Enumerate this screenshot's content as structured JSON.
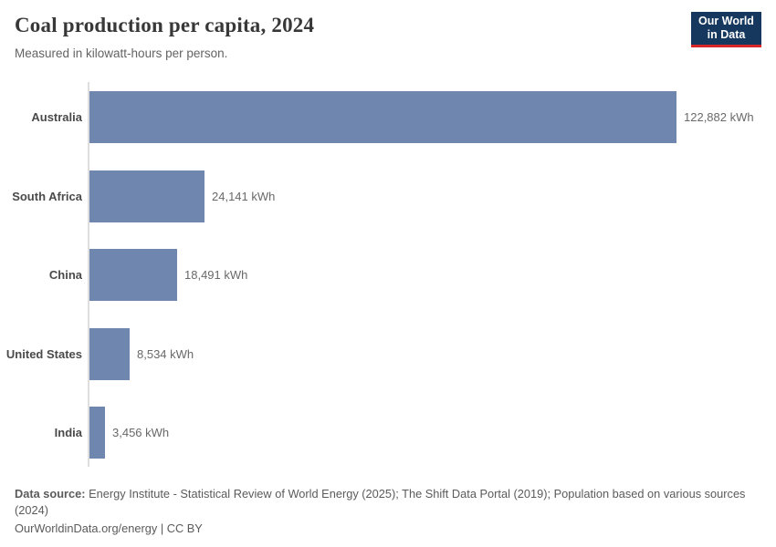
{
  "header": {
    "title": "Coal production per capita, 2024",
    "subtitle": "Measured in kilowatt-hours per person."
  },
  "logo": {
    "line1": "Our World",
    "line2": "in Data",
    "bg_color": "#17385e",
    "accent_color": "#d92629"
  },
  "chart_data": {
    "type": "bar",
    "orientation": "horizontal",
    "title": "Coal production per capita, 2024",
    "xlabel": "",
    "ylabel": "",
    "categories": [
      "Australia",
      "South Africa",
      "China",
      "United States",
      "India"
    ],
    "values": [
      122882,
      24141,
      18491,
      8534,
      3456
    ],
    "value_labels": [
      "122,882 kWh",
      "24,141 kWh",
      "18,491 kWh",
      "8,534 kWh",
      "3,456 kWh"
    ],
    "unit": "kWh",
    "xlim": [
      0,
      122882
    ],
    "grid": false,
    "legend": false,
    "bar_color": "#6f87ae",
    "axis_line_color": "#dedede"
  },
  "footer": {
    "source_label": "Data source:",
    "source_text": "Energy Institute - Statistical Review of World Energy (2025); The Shift Data Portal (2019); Population based on various sources (2024)",
    "url": "OurWorldinData.org/energy",
    "separator": "|",
    "license": "CC BY"
  }
}
